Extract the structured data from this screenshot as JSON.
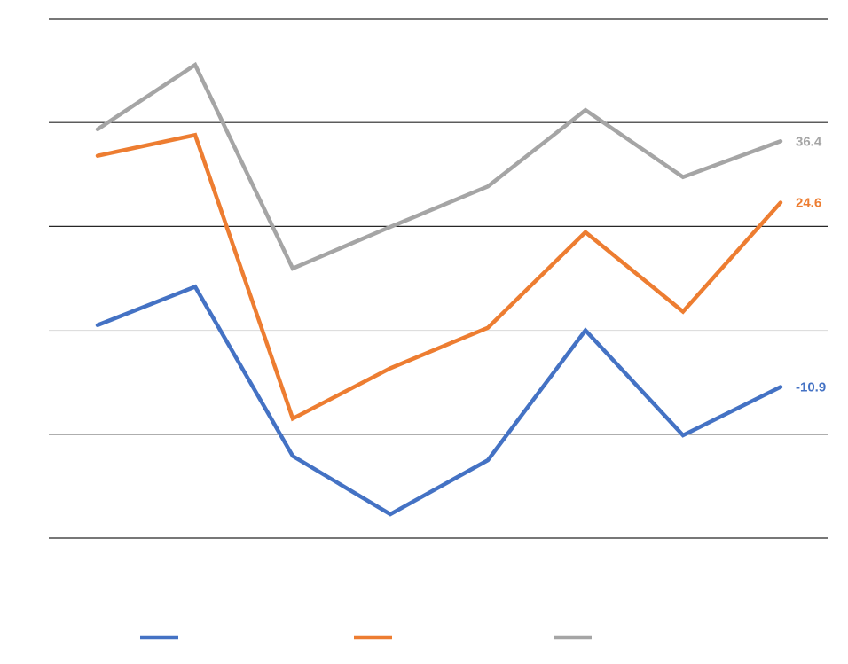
{
  "chart_data": {
    "type": "line",
    "title": "",
    "xlabel": "",
    "ylabel": "",
    "ylim": [
      -40,
      60
    ],
    "gridlines": [
      60,
      40,
      20,
      0,
      -20,
      -40
    ],
    "zero_line": 0,
    "grid": true,
    "x": [
      1,
      2,
      3,
      4,
      5,
      6,
      7,
      8
    ],
    "series": [
      {
        "color": "#4472C4",
        "values": [
          1,
          8.4,
          -24.2,
          -35.4,
          -25,
          0,
          -20.2,
          -10.9
        ],
        "end_label": "-10.9"
      },
      {
        "color": "#ED7D31",
        "values": [
          33.6,
          37.6,
          -17,
          -7.3,
          0.5,
          18.9,
          3.6,
          24.6
        ],
        "end_label": "24.6"
      },
      {
        "color": "#A5A5A5",
        "values": [
          38.7,
          51.1,
          11.9,
          19.9,
          27.7,
          42.4,
          29.5,
          36.4
        ],
        "end_label": "36.4"
      }
    ],
    "legend": "bottom"
  }
}
